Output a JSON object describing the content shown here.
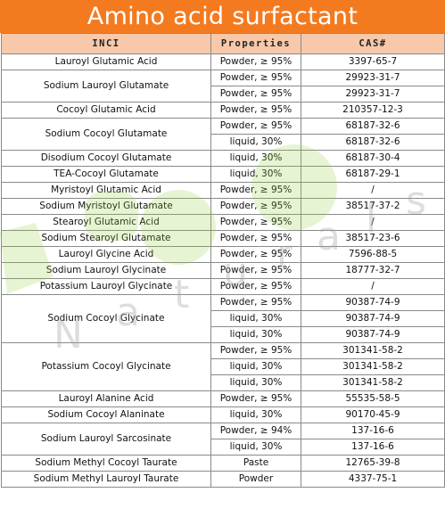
{
  "title": "Amino acid surfactant",
  "headers": [
    "INCI",
    "Properties",
    "CAS#"
  ],
  "rows": [
    {
      "inci": "Lauroyl Glutamic Acid",
      "items": [
        [
          "Powder, ≥ 95%",
          "3397-65-7"
        ]
      ]
    },
    {
      "inci": "Sodium Lauroyl Glutamate",
      "items": [
        [
          "Powder, ≥ 95%",
          "29923-31-7"
        ],
        [
          "Powder, ≥ 95%",
          "29923-31-7"
        ]
      ]
    },
    {
      "inci": "Cocoyl Glutamic Acid",
      "items": [
        [
          "Powder, ≥ 95%",
          "210357-12-3"
        ]
      ]
    },
    {
      "inci": "Sodium Cocoyl Glutamate",
      "items": [
        [
          "Powder, ≥ 95%",
          "68187-32-6"
        ],
        [
          "liquid, 30%",
          "68187-32-6"
        ]
      ]
    },
    {
      "inci": "Disodium Cocoyl Glutamate",
      "items": [
        [
          "liquid, 30%",
          "68187-30-4"
        ]
      ]
    },
    {
      "inci": "TEA-Cocoyl Glutamate",
      "items": [
        [
          "liquid, 30%",
          "68187-29-1"
        ]
      ]
    },
    {
      "inci": "Myristoyl Glutamic Acid",
      "items": [
        [
          "Powder, ≥ 95%",
          "/"
        ]
      ]
    },
    {
      "inci": "Sodium Myristoyl Glutamate",
      "items": [
        [
          "Powder, ≥ 95%",
          "38517-37-2"
        ]
      ]
    },
    {
      "inci": "Stearoyl Glutamic Acid",
      "items": [
        [
          "Powder, ≥ 95%",
          "/"
        ]
      ]
    },
    {
      "inci": "Sodium Stearoyl Glutamate",
      "items": [
        [
          "Powder, ≥ 95%",
          "38517-23-6"
        ]
      ]
    },
    {
      "inci": "Lauroyl Glycine Acid",
      "items": [
        [
          "Powder, ≥ 95%",
          "7596-88-5"
        ]
      ]
    },
    {
      "inci": "Sodium Lauroyl Glycinate",
      "items": [
        [
          "Powder, ≥ 95%",
          "18777-32-7"
        ]
      ]
    },
    {
      "inci": "Potassium Lauroyl Glycinate",
      "items": [
        [
          "Powder, ≥ 95%",
          "/"
        ]
      ]
    },
    {
      "inci": "Sodium Cocoyl Glycinate",
      "items": [
        [
          "Powder, ≥ 95%",
          "90387-74-9"
        ],
        [
          "liquid, 30%",
          "90387-74-9"
        ],
        [
          "liquid, 30%",
          "90387-74-9"
        ]
      ]
    },
    {
      "inci": "Potassium Cocoyl Glycinate",
      "items": [
        [
          "Powder, ≥ 95%",
          "301341-58-2"
        ],
        [
          "liquid, 30%",
          "301341-58-2"
        ],
        [
          "liquid, 30%",
          "301341-58-2"
        ]
      ]
    },
    {
      "inci": "Lauroyl Alanine Acid",
      "items": [
        [
          "Powder, ≥ 95%",
          "55535-58-5"
        ]
      ]
    },
    {
      "inci": "Sodium Cocoyl Alaninate",
      "items": [
        [
          "liquid, 30%",
          "90170-45-9"
        ]
      ]
    },
    {
      "inci": "Sodium Lauroyl Sarcosinate",
      "items": [
        [
          "Powder, ≥ 94%",
          "137-16-6"
        ],
        [
          "liquid, 30%",
          "137-16-6"
        ]
      ]
    },
    {
      "inci": "Sodium Methyl Cocoyl Taurate",
      "items": [
        [
          "Paste",
          "12765-39-8"
        ]
      ]
    },
    {
      "inci": "Sodium Methyl Lauroyl Taurate",
      "items": [
        [
          "Powder",
          "4337-75-1"
        ]
      ]
    }
  ],
  "colors": {
    "banner": "#f47a20",
    "header_row": "#f7c8a9",
    "watermark_green": "#8fcf3c"
  }
}
